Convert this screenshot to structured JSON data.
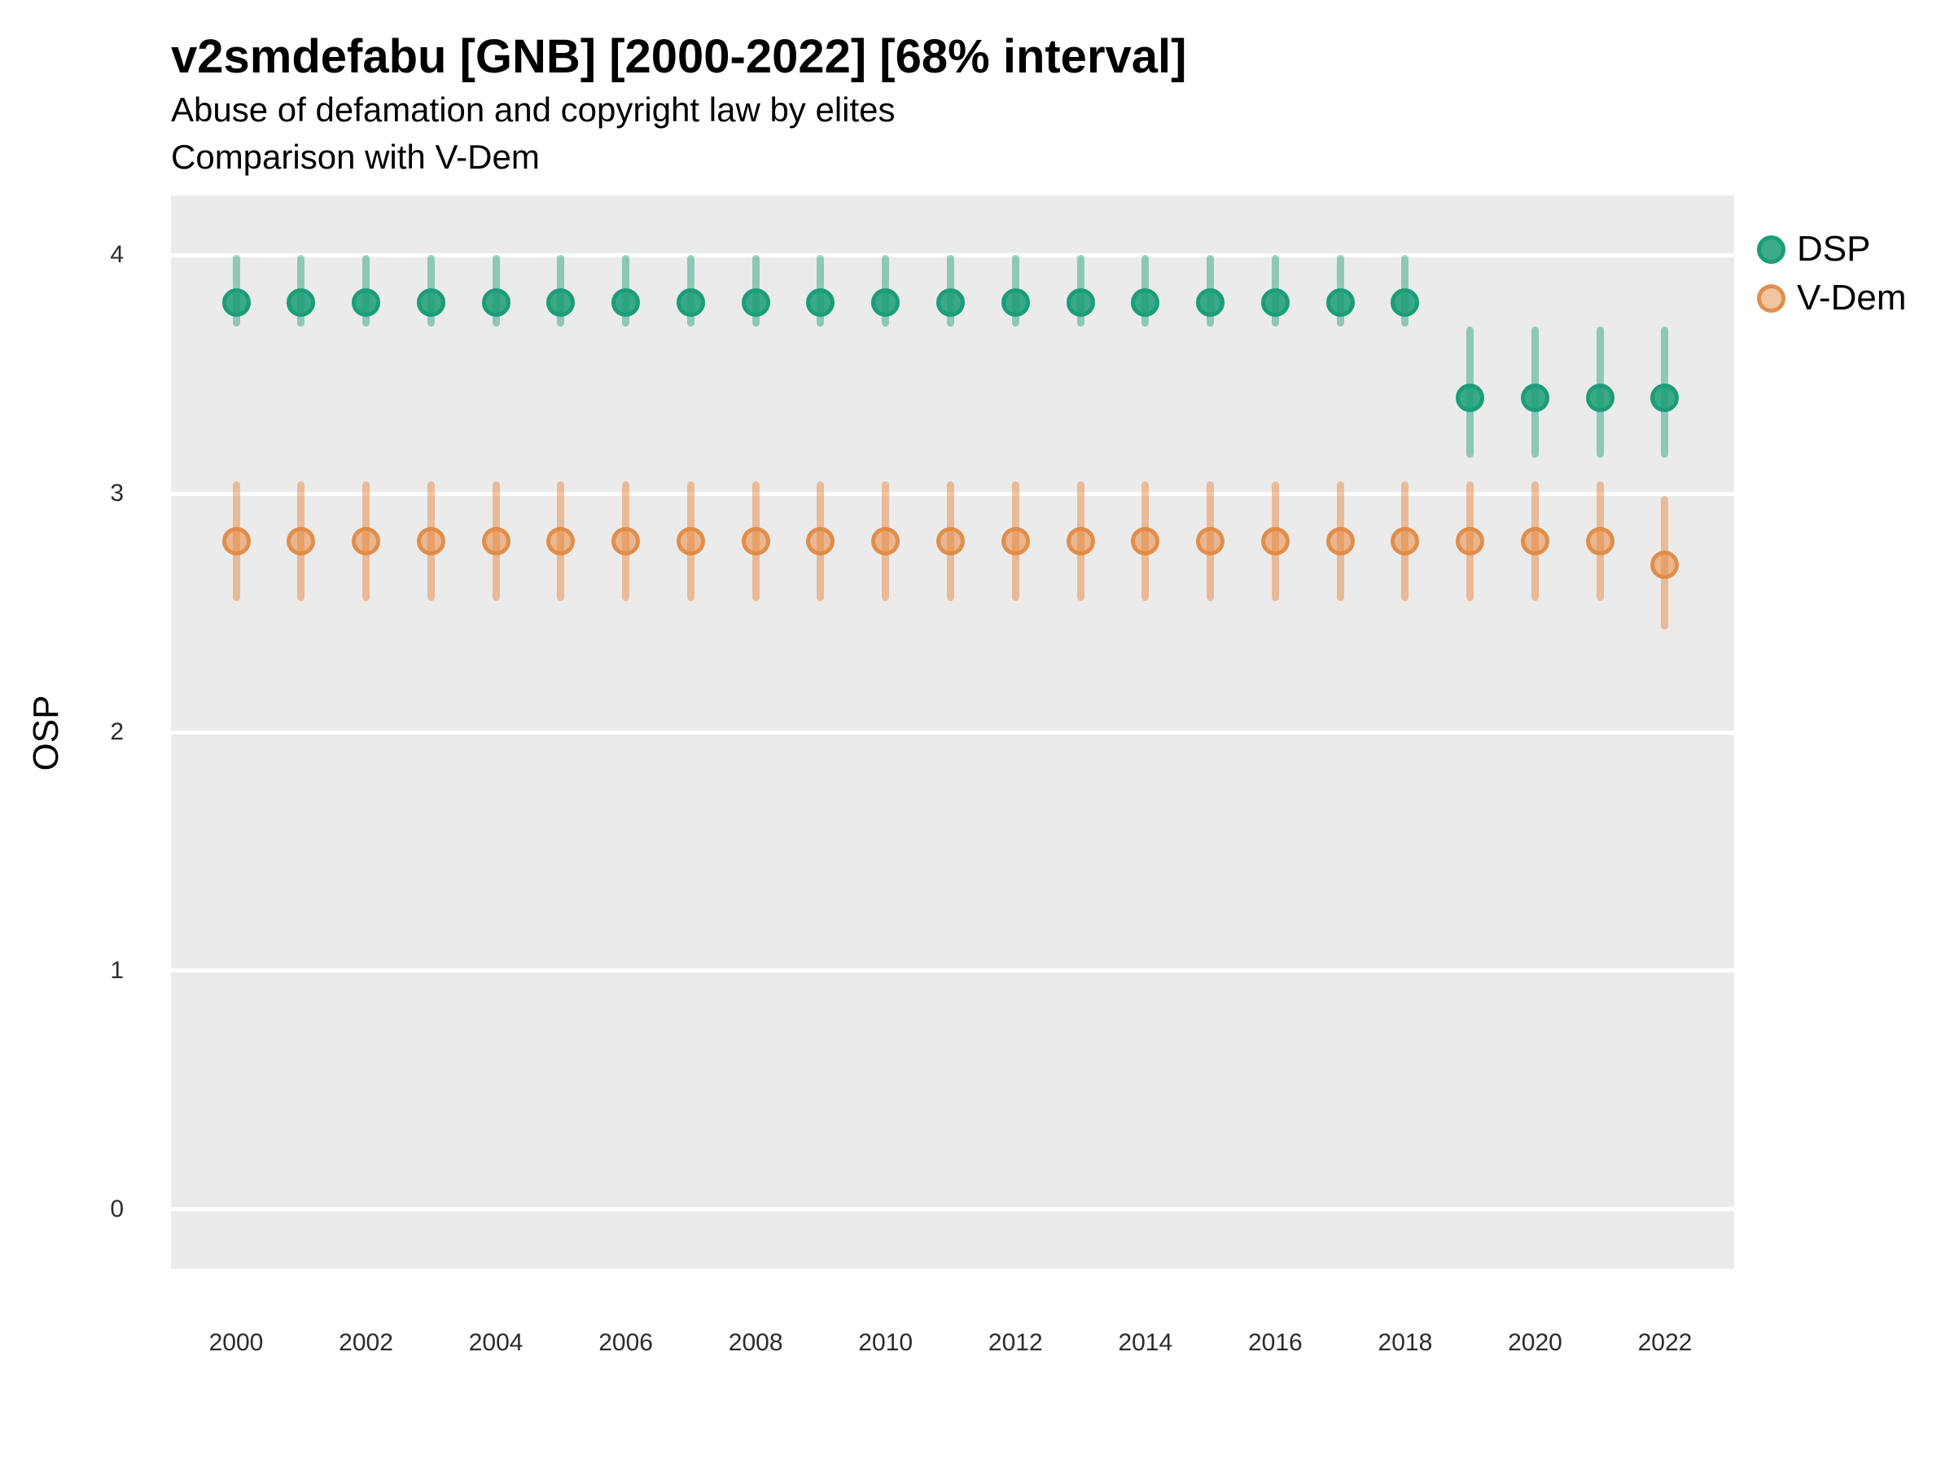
{
  "title": "v2smdefabu [GNB] [2000-2022] [68% interval]",
  "subtitle_line1": "Abuse of defamation and copyright law by elites",
  "subtitle_line2": "Comparison with V-Dem",
  "y_axis_title": "OSP",
  "legend": {
    "items": [
      {
        "label": "DSP",
        "stroke": "#1b9e77",
        "fill": "rgba(27,158,119,0.85)"
      },
      {
        "label": "V-Dem",
        "stroke": "rgba(224,138,66,0.9)",
        "fill": "rgba(231,138,67,0.5)"
      }
    ]
  },
  "colors": {
    "panel_background": "#ebebeb",
    "gridline": "#ffffff",
    "dsp_green": "#1b9e77",
    "vdem_orange": "#e78a43"
  },
  "chart_data": {
    "type": "scatter",
    "title": "v2smdefabu [GNB] [2000-2022] [68% interval]",
    "subtitle": "Abuse of defamation and copyright law by elites — Comparison with V-Dem",
    "interval": "68%",
    "xlabel": "",
    "ylabel": "OSP",
    "ylim": [
      -0.25,
      4.25
    ],
    "grid": "major-horizontal",
    "legend_position": "right",
    "y_ticks": [
      0,
      1,
      2,
      3,
      4
    ],
    "x_tick_labels": [
      "2000",
      "2002",
      "2004",
      "2006",
      "2008",
      "2010",
      "2012",
      "2014",
      "2016",
      "2018",
      "2020",
      "2022"
    ],
    "x": [
      2000,
      2001,
      2002,
      2003,
      2004,
      2005,
      2006,
      2007,
      2008,
      2009,
      2010,
      2011,
      2012,
      2013,
      2014,
      2015,
      2016,
      2017,
      2018,
      2019,
      2020,
      2021,
      2022
    ],
    "series": [
      {
        "name": "DSP",
        "point_fill": "rgba(27,158,119,0.85)",
        "point_stroke": "#1b9e77",
        "bar_color": "rgba(27,158,119,0.45)",
        "est": [
          3.8,
          3.8,
          3.8,
          3.8,
          3.8,
          3.8,
          3.8,
          3.8,
          3.8,
          3.8,
          3.8,
          3.8,
          3.8,
          3.8,
          3.8,
          3.8,
          3.8,
          3.8,
          3.8,
          3.4,
          3.4,
          3.4,
          3.4
        ],
        "lo": [
          3.7,
          3.7,
          3.7,
          3.7,
          3.7,
          3.7,
          3.7,
          3.7,
          3.7,
          3.7,
          3.7,
          3.7,
          3.7,
          3.7,
          3.7,
          3.7,
          3.7,
          3.7,
          3.7,
          3.15,
          3.15,
          3.15,
          3.15
        ],
        "hi": [
          4.0,
          4.0,
          4.0,
          4.0,
          4.0,
          4.0,
          4.0,
          4.0,
          4.0,
          4.0,
          4.0,
          4.0,
          4.0,
          4.0,
          4.0,
          4.0,
          4.0,
          4.0,
          4.0,
          3.7,
          3.7,
          3.7,
          3.7
        ]
      },
      {
        "name": "V-Dem",
        "point_fill": "rgba(231,138,67,0.55)",
        "point_stroke": "rgba(224,138,66,0.9)",
        "bar_color": "rgba(231,138,67,0.5)",
        "est": [
          2.8,
          2.8,
          2.8,
          2.8,
          2.8,
          2.8,
          2.8,
          2.8,
          2.8,
          2.8,
          2.8,
          2.8,
          2.8,
          2.8,
          2.8,
          2.8,
          2.8,
          2.8,
          2.8,
          2.8,
          2.8,
          2.8,
          2.7
        ],
        "lo": [
          2.55,
          2.55,
          2.55,
          2.55,
          2.55,
          2.55,
          2.55,
          2.55,
          2.55,
          2.55,
          2.55,
          2.55,
          2.55,
          2.55,
          2.55,
          2.55,
          2.55,
          2.55,
          2.55,
          2.55,
          2.55,
          2.55,
          2.43
        ],
        "hi": [
          3.05,
          3.05,
          3.05,
          3.05,
          3.05,
          3.05,
          3.05,
          3.05,
          3.05,
          3.05,
          3.05,
          3.05,
          3.05,
          3.05,
          3.05,
          3.05,
          3.05,
          3.05,
          3.05,
          3.05,
          3.05,
          3.05,
          2.99
        ]
      }
    ]
  }
}
